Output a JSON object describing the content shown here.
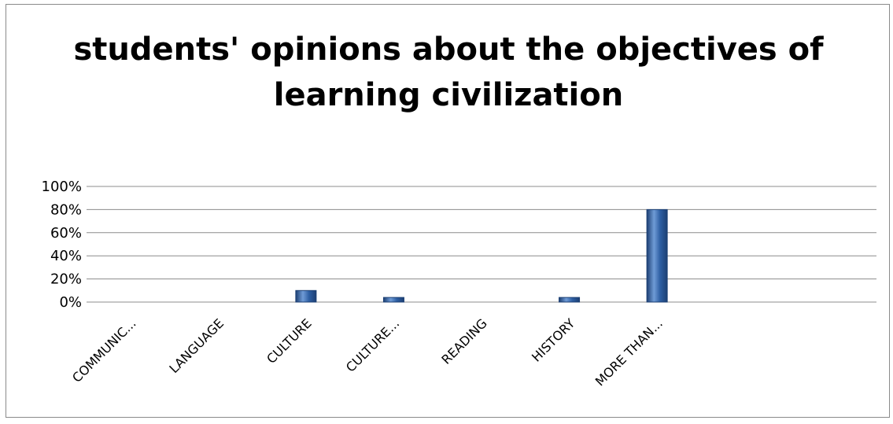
{
  "chart_data": {
    "type": "bar",
    "title": "students' opinions about the objectives of learning civilization",
    "categories": [
      "COMMUNIC...",
      "LANGUAGE",
      "CULTURE",
      "CULTURE...",
      "READING",
      "HISTORY",
      "MORE THAN..."
    ],
    "series": [
      {
        "values": [
          0,
          0,
          10,
          4,
          0,
          4,
          80
        ]
      }
    ],
    "y_ticks": [
      "0%",
      "20%",
      "40%",
      "60%",
      "80%",
      "100%"
    ],
    "ylim": [
      0,
      100
    ],
    "grid": true,
    "legend": "none",
    "colors": {
      "bar": "#2e5fa3",
      "bar_dark": "#1c3f73",
      "bar_light": "#6f9bd6",
      "grid": "#8c8c8c"
    }
  }
}
